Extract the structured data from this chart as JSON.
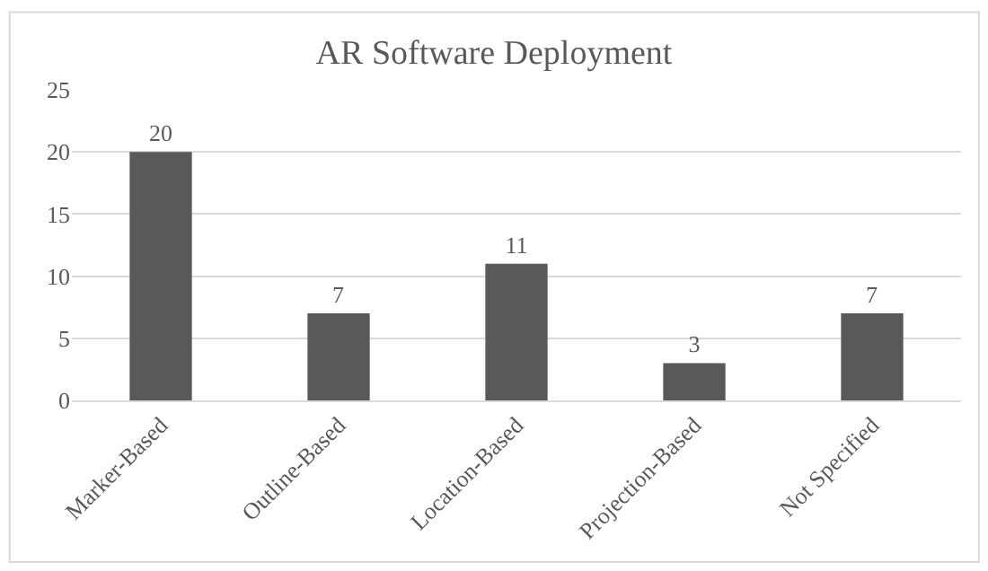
{
  "chart_data": {
    "type": "bar",
    "title": "AR Software Deployment",
    "categories": [
      "Marker-Based",
      "Outline-Based",
      "Location-Based",
      "Projection-Based",
      "Not Specified"
    ],
    "values": [
      20,
      7,
      11,
      3,
      7
    ],
    "color": "#595959",
    "ylim": [
      0,
      25
    ],
    "yticks": [
      0,
      5,
      10,
      15,
      20,
      25
    ],
    "grid": "y",
    "data_labels": true
  }
}
